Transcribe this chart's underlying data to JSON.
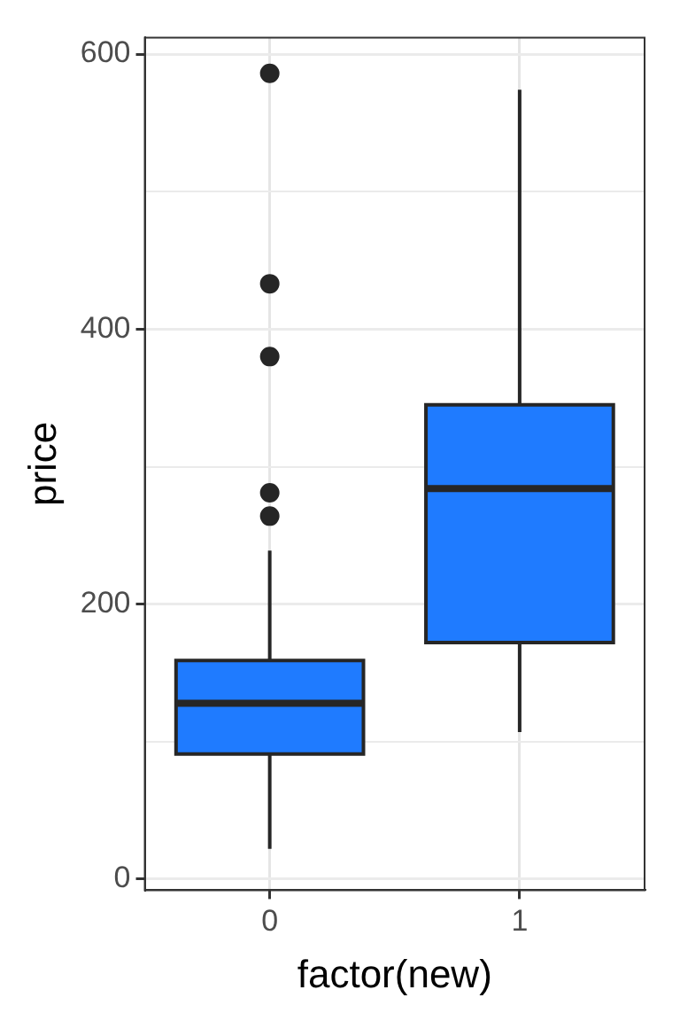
{
  "chart_data": {
    "type": "box",
    "xlabel": "factor(new)",
    "ylabel": "price",
    "categories": [
      "0",
      "1"
    ],
    "color": "#1f7bff",
    "boxes": [
      {
        "low": 22,
        "q1": 91,
        "median": 128,
        "q3": 159,
        "high": 239,
        "outliers": [
          264,
          281,
          380,
          433,
          586
        ]
      },
      {
        "low": 107,
        "q1": 172,
        "median": 284,
        "q3": 345,
        "high": 574
      }
    ],
    "ylim": [
      -8,
      612
    ],
    "yticks": [
      0,
      {
        "value": 100,
        "label": null
      },
      200,
      {
        "value": 300,
        "label": null
      },
      400,
      {
        "value": 500,
        "label": null
      },
      600
    ],
    "grid": true
  }
}
